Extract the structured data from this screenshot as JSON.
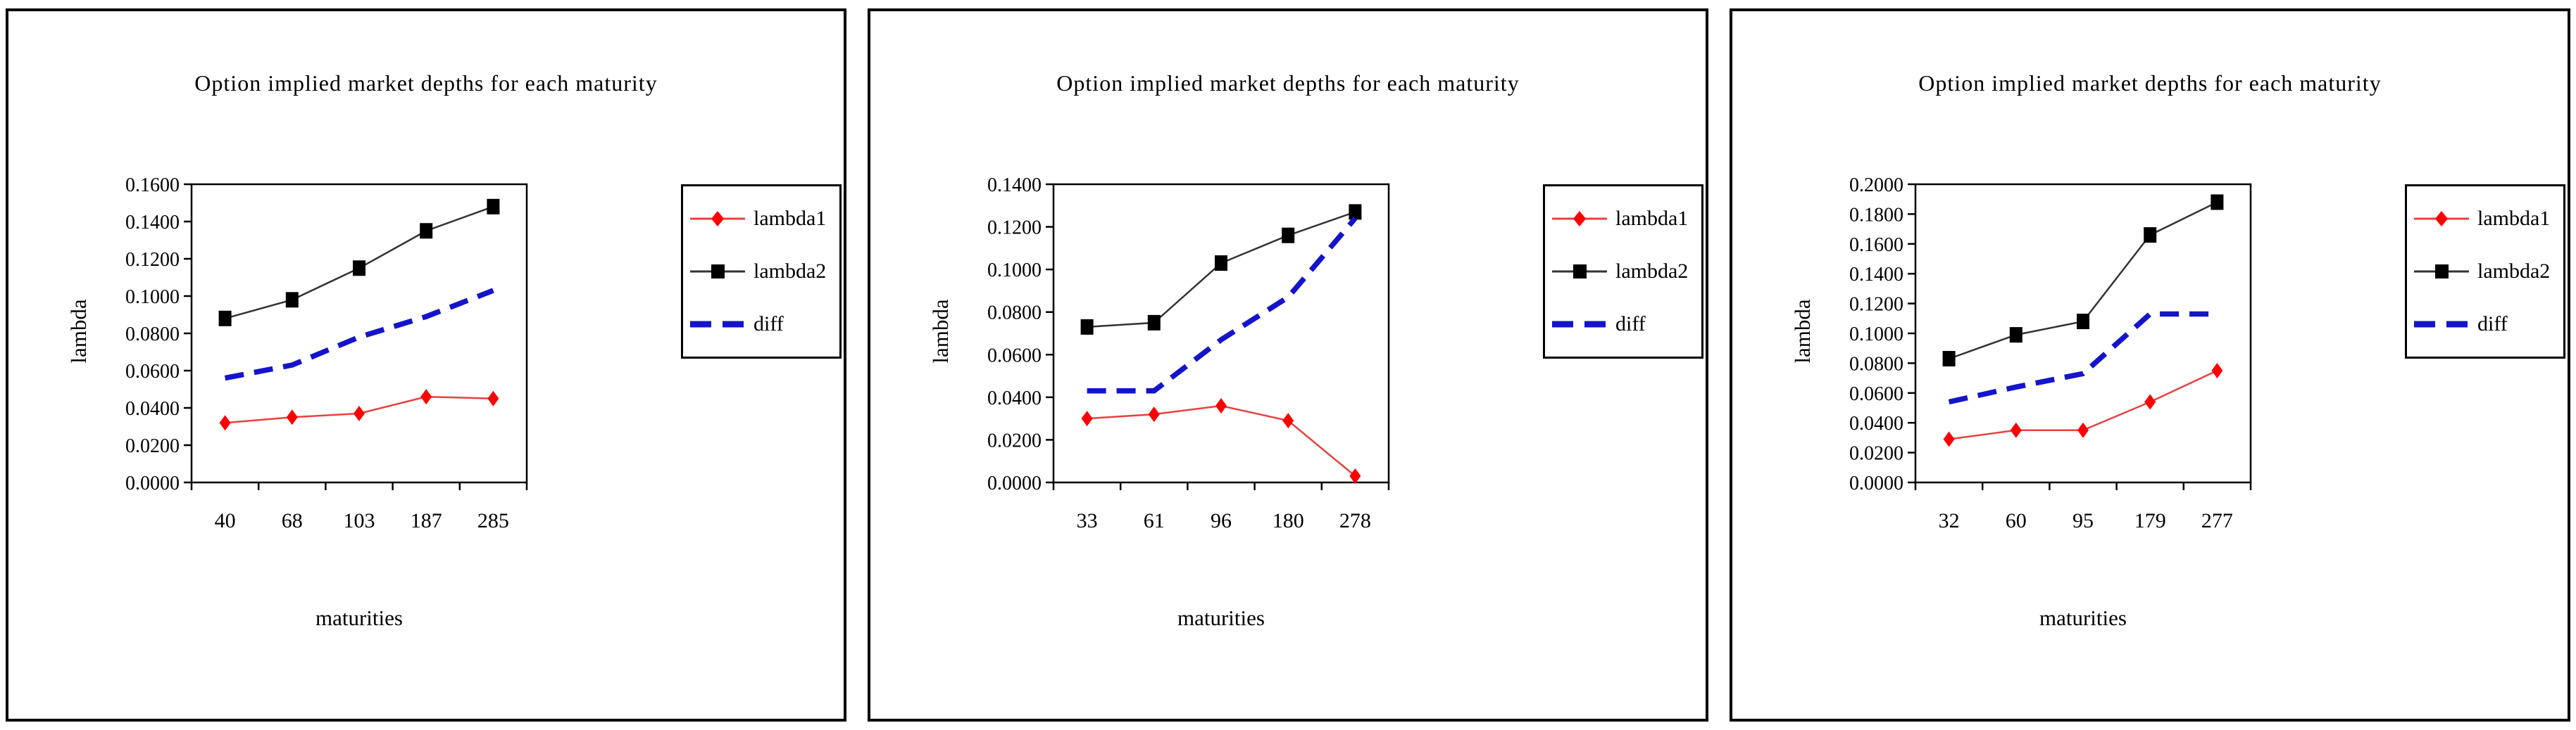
{
  "chart_data": [
    {
      "type": "line",
      "title": "Option implied market depths for each maturity",
      "xlabel": "maturities",
      "ylabel": "lambda",
      "categories": [
        "40",
        "68",
        "103",
        "187",
        "285"
      ],
      "series": [
        {
          "name": "lambda1",
          "color": "#FF0000",
          "line_color": "#E84040",
          "marker": "diamond",
          "line_style": "solid",
          "values": [
            0.032,
            0.035,
            0.037,
            0.046,
            0.045
          ]
        },
        {
          "name": "lambda2",
          "color": "#000000",
          "line_color": "#333333",
          "marker": "square",
          "line_style": "solid",
          "values": [
            0.088,
            0.098,
            0.115,
            0.135,
            0.148
          ]
        },
        {
          "name": "diff",
          "color": "#1414CC",
          "line_color": "#1414CC",
          "marker": "none",
          "line_style": "dashed",
          "values": [
            0.056,
            0.063,
            0.078,
            0.089,
            0.103
          ]
        }
      ],
      "ylim": [
        0.0,
        0.16
      ],
      "ytick_step": 0.02,
      "ytick_decimals": 4,
      "grid": false,
      "legend_position": "right"
    },
    {
      "type": "line",
      "title": "Option implied market depths for each maturity",
      "xlabel": "maturities",
      "ylabel": "lambda",
      "categories": [
        "33",
        "61",
        "96",
        "180",
        "278"
      ],
      "series": [
        {
          "name": "lambda1",
          "color": "#FF0000",
          "line_color": "#E84040",
          "marker": "diamond",
          "line_style": "solid",
          "values": [
            0.03,
            0.032,
            0.036,
            0.029,
            0.003
          ]
        },
        {
          "name": "lambda2",
          "color": "#000000",
          "line_color": "#333333",
          "marker": "square",
          "line_style": "solid",
          "values": [
            0.073,
            0.075,
            0.103,
            0.116,
            0.127
          ]
        },
        {
          "name": "diff",
          "color": "#1414CC",
          "line_color": "#1414CC",
          "marker": "none",
          "line_style": "dashed",
          "values": [
            0.043,
            0.043,
            0.067,
            0.087,
            0.124
          ]
        }
      ],
      "ylim": [
        0.0,
        0.14
      ],
      "ytick_step": 0.02,
      "ytick_decimals": 4,
      "grid": false,
      "legend_position": "right"
    },
    {
      "type": "line",
      "title": "Option implied market depths for each maturity",
      "xlabel": "maturities",
      "ylabel": "lambda",
      "categories": [
        "32",
        "60",
        "95",
        "179",
        "277"
      ],
      "series": [
        {
          "name": "lambda1",
          "color": "#FF0000",
          "line_color": "#E84040",
          "marker": "diamond",
          "line_style": "solid",
          "values": [
            0.029,
            0.035,
            0.035,
            0.054,
            0.075
          ]
        },
        {
          "name": "lambda2",
          "color": "#000000",
          "line_color": "#333333",
          "marker": "square",
          "line_style": "solid",
          "values": [
            0.083,
            0.099,
            0.108,
            0.166,
            0.188
          ]
        },
        {
          "name": "diff",
          "color": "#1414CC",
          "line_color": "#1414CC",
          "marker": "none",
          "line_style": "dashed",
          "values": [
            0.054,
            0.064,
            0.073,
            0.113,
            0.113
          ]
        }
      ],
      "ylim": [
        0.0,
        0.2
      ],
      "ytick_step": 0.02,
      "ytick_decimals": 4,
      "grid": false,
      "legend_position": "right"
    }
  ]
}
